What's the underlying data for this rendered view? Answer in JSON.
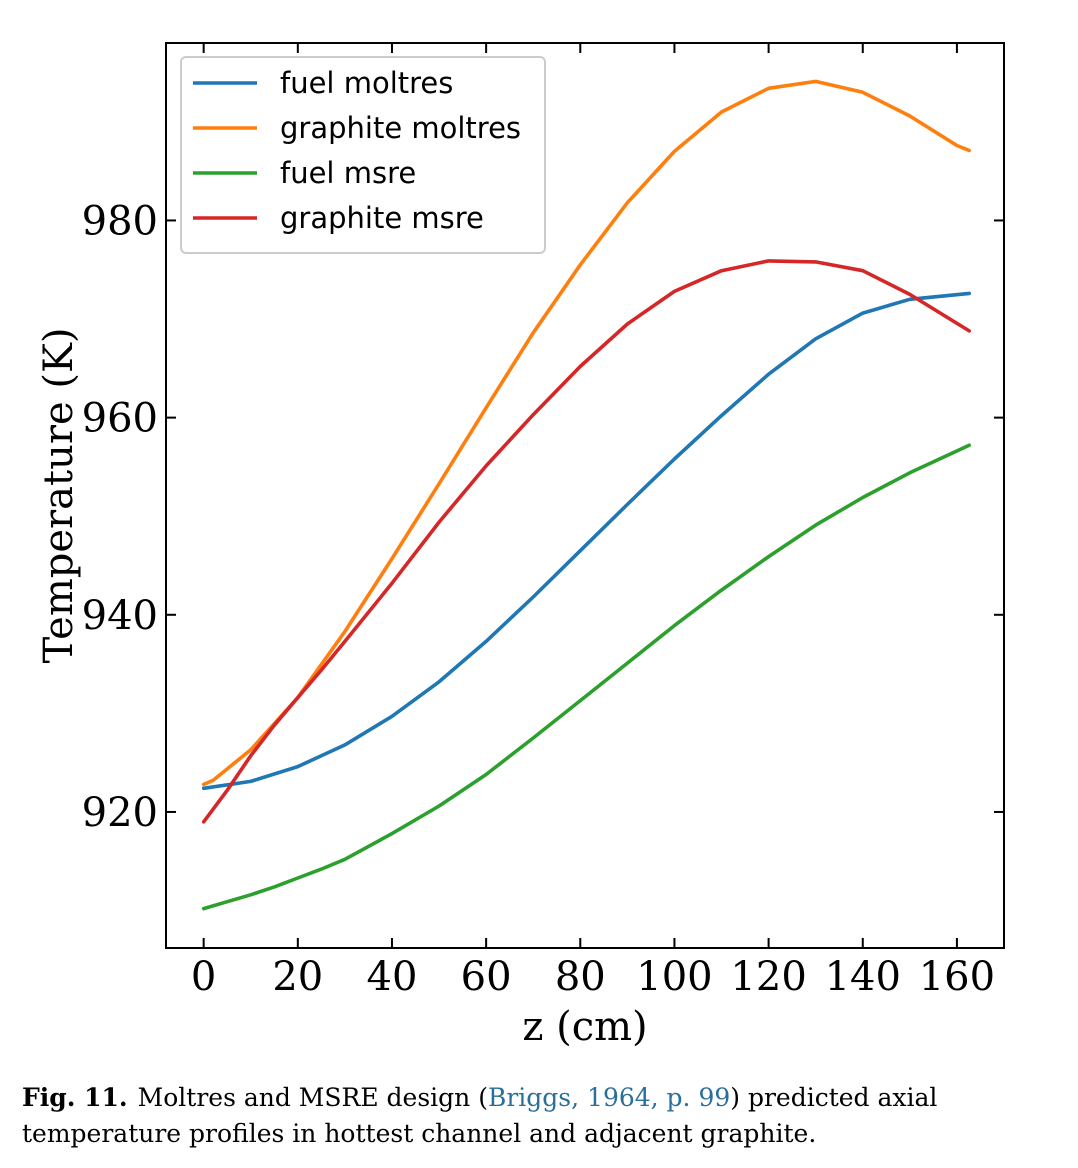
{
  "chart_data": {
    "type": "line",
    "title": "",
    "xlabel": "z (cm)",
    "ylabel": "Temperature (K)",
    "xlim": [
      -8,
      170
    ],
    "ylim": [
      906.2,
      998.0
    ],
    "xticks": [
      0,
      20,
      40,
      60,
      80,
      100,
      120,
      140,
      160
    ],
    "yticks": [
      920,
      940,
      960,
      980
    ],
    "grid": false,
    "legend_position": "top-left",
    "series": [
      {
        "name": "fuel moltres",
        "color": "#1f77b4",
        "x": [
          0,
          10,
          20,
          30,
          40,
          50,
          60,
          70,
          80,
          90,
          100,
          110,
          120,
          130,
          140,
          150,
          162.6
        ],
        "y": [
          922.4,
          923.1,
          924.6,
          926.8,
          929.7,
          933.2,
          937.3,
          941.8,
          946.5,
          951.2,
          955.8,
          960.2,
          964.4,
          968.0,
          970.6,
          972.0,
          972.6
        ]
      },
      {
        "name": "graphite moltres",
        "color": "#ff7f0e",
        "x": [
          0,
          2,
          10,
          20,
          30,
          40,
          50,
          60,
          70,
          80,
          90,
          100,
          110,
          120,
          130,
          140,
          150,
          160,
          162.6
        ],
        "y": [
          922.8,
          923.2,
          926.3,
          931.6,
          938.3,
          945.7,
          953.3,
          961.0,
          968.6,
          975.5,
          981.8,
          987.0,
          991.0,
          993.4,
          994.1,
          993.0,
          990.6,
          987.6,
          987.1
        ]
      },
      {
        "name": "fuel msre",
        "color": "#2ca02c",
        "x": [
          0,
          5,
          10,
          15,
          20,
          25,
          30,
          40,
          50,
          60,
          70,
          80,
          90,
          100,
          110,
          120,
          130,
          140,
          150,
          162.6
        ],
        "y": [
          910.2,
          910.9,
          911.6,
          912.4,
          913.3,
          914.2,
          915.2,
          917.8,
          920.6,
          923.8,
          927.5,
          931.3,
          935.1,
          938.9,
          942.5,
          945.9,
          949.1,
          951.9,
          954.4,
          957.2
        ]
      },
      {
        "name": "graphite msre",
        "color": "#d62728",
        "x": [
          0,
          5,
          10,
          15,
          20,
          25,
          30,
          40,
          50,
          60,
          70,
          80,
          90,
          100,
          110,
          120,
          130,
          140,
          150,
          162.6
        ],
        "y": [
          919.0,
          922.2,
          925.7,
          928.8,
          931.6,
          934.4,
          937.3,
          943.2,
          949.4,
          955.1,
          960.3,
          965.2,
          969.5,
          972.8,
          974.9,
          975.9,
          975.8,
          974.9,
          972.5,
          968.8
        ]
      }
    ]
  },
  "caption": {
    "label": "Fig. 11.",
    "text_before": "Moltres and MSRE design (",
    "citation": "Briggs, 1964, p. 99",
    "text_after": ") predicted axial temperature profiles in hottest channel and adjacent graphite."
  }
}
